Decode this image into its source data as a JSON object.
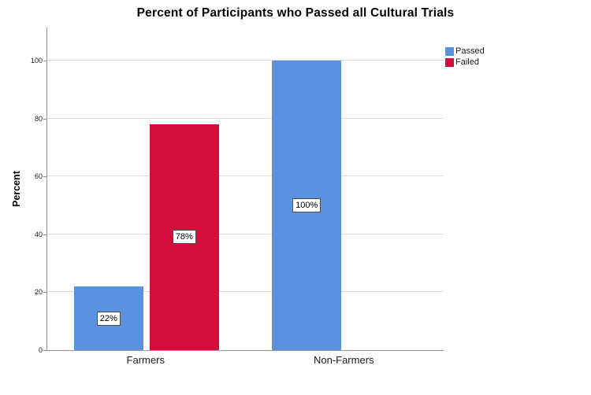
{
  "chart_data": {
    "type": "bar",
    "title": "Percent of Participants who Passed all Cultural Trials",
    "ylabel": "Percent",
    "xlabel": "",
    "categories": [
      "Farmers",
      "Non-Farmers"
    ],
    "series": [
      {
        "name": "Passed",
        "color": "#5B92DF",
        "values": [
          22,
          100
        ],
        "labels": [
          "22%",
          "100%"
        ]
      },
      {
        "name": "Failed",
        "color": "#D20E3C",
        "values": [
          78,
          0
        ],
        "labels": [
          "78%",
          null
        ]
      }
    ],
    "yticks": [
      0,
      20,
      40,
      60,
      80,
      100
    ],
    "ylim": [
      0,
      111
    ],
    "grid": true,
    "legend_position": "top-right",
    "data_label_style": "boxed-at-bar-center",
    "colors": {
      "passed": "#5B92DF",
      "failed": "#D20E3C",
      "gridline": "#DCDCDC",
      "axis": "#8C8C8C"
    }
  }
}
